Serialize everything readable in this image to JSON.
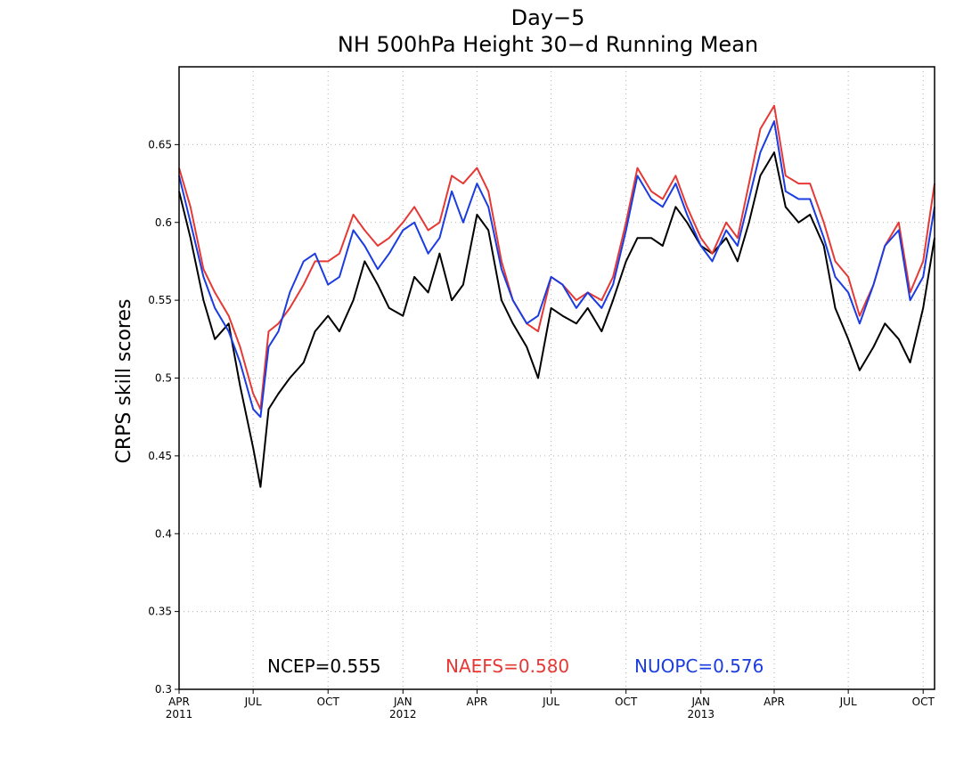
{
  "chart_data": {
    "type": "line",
    "title": "Day−5",
    "subtitle": "NH 500hPa Height 30−d Running Mean",
    "ylabel": "CRPS skill scores",
    "xlabel": "",
    "ylim": [
      0.3,
      0.7
    ],
    "xlim": [
      "2011-04-01",
      "2013-10-15"
    ],
    "grid": true,
    "legend_position": "bottom-center",
    "y_ticks": [
      "0.3",
      "0.35",
      "0.4",
      "0.45",
      "0.5",
      "0.55",
      "0.6",
      "0.65"
    ],
    "x_ticks": [
      {
        "date": "2011-04-01",
        "label": "APR",
        "year": "2011"
      },
      {
        "date": "2011-07-01",
        "label": "JUL",
        "year": ""
      },
      {
        "date": "2011-10-01",
        "label": "OCT",
        "year": ""
      },
      {
        "date": "2012-01-01",
        "label": "JAN",
        "year": "2012"
      },
      {
        "date": "2012-04-01",
        "label": "APR",
        "year": ""
      },
      {
        "date": "2012-07-01",
        "label": "JUL",
        "year": ""
      },
      {
        "date": "2012-10-01",
        "label": "OCT",
        "year": ""
      },
      {
        "date": "2013-01-01",
        "label": "JAN",
        "year": "2013"
      },
      {
        "date": "2013-04-01",
        "label": "APR",
        "year": ""
      },
      {
        "date": "2013-07-01",
        "label": "JUL",
        "year": ""
      },
      {
        "date": "2013-10-01",
        "label": "OCT",
        "year": ""
      }
    ],
    "series": [
      {
        "name": "NCEP",
        "legend": "NCEP=0.555",
        "color": "#000000",
        "x": [
          "2011-04-01",
          "2011-04-15",
          "2011-05-01",
          "2011-05-15",
          "2011-06-01",
          "2011-06-15",
          "2011-07-01",
          "2011-07-10",
          "2011-07-20",
          "2011-08-01",
          "2011-08-15",
          "2011-09-01",
          "2011-09-15",
          "2011-10-01",
          "2011-10-15",
          "2011-11-01",
          "2011-11-15",
          "2011-12-01",
          "2011-12-15",
          "2012-01-01",
          "2012-01-15",
          "2012-02-01",
          "2012-02-15",
          "2012-03-01",
          "2012-03-15",
          "2012-04-01",
          "2012-04-15",
          "2012-05-01",
          "2012-05-15",
          "2012-06-01",
          "2012-06-15",
          "2012-07-01",
          "2012-07-15",
          "2012-08-01",
          "2012-08-15",
          "2012-09-01",
          "2012-09-15",
          "2012-10-01",
          "2012-10-15",
          "2012-11-01",
          "2012-11-15",
          "2012-12-01",
          "2012-12-15",
          "2013-01-01",
          "2013-01-15",
          "2013-02-01",
          "2013-02-15",
          "2013-03-01",
          "2013-03-15",
          "2013-04-01",
          "2013-04-15",
          "2013-05-01",
          "2013-05-15",
          "2013-06-01",
          "2013-06-15",
          "2013-07-01",
          "2013-07-15",
          "2013-08-01",
          "2013-08-15",
          "2013-09-01",
          "2013-09-15",
          "2013-10-01",
          "2013-10-15"
        ],
        "y": [
          0.62,
          0.59,
          0.55,
          0.525,
          0.535,
          0.495,
          0.455,
          0.43,
          0.48,
          0.49,
          0.5,
          0.51,
          0.53,
          0.54,
          0.53,
          0.55,
          0.575,
          0.56,
          0.545,
          0.54,
          0.565,
          0.555,
          0.58,
          0.55,
          0.56,
          0.605,
          0.595,
          0.55,
          0.535,
          0.52,
          0.5,
          0.545,
          0.54,
          0.535,
          0.545,
          0.53,
          0.55,
          0.575,
          0.59,
          0.59,
          0.585,
          0.61,
          0.6,
          0.585,
          0.58,
          0.59,
          0.575,
          0.6,
          0.63,
          0.645,
          0.61,
          0.6,
          0.605,
          0.585,
          0.545,
          0.525,
          0.505,
          0.52,
          0.535,
          0.525,
          0.51,
          0.545,
          0.59
        ]
      },
      {
        "name": "NAEFS",
        "legend": "NAEFS=0.580",
        "color": "#e53935",
        "x": [
          "2011-04-01",
          "2011-04-15",
          "2011-05-01",
          "2011-05-15",
          "2011-06-01",
          "2011-06-15",
          "2011-07-01",
          "2011-07-10",
          "2011-07-20",
          "2011-08-01",
          "2011-08-15",
          "2011-09-01",
          "2011-09-15",
          "2011-10-01",
          "2011-10-15",
          "2011-11-01",
          "2011-11-15",
          "2011-12-01",
          "2011-12-15",
          "2012-01-01",
          "2012-01-15",
          "2012-02-01",
          "2012-02-15",
          "2012-03-01",
          "2012-03-15",
          "2012-04-01",
          "2012-04-15",
          "2012-05-01",
          "2012-05-15",
          "2012-06-01",
          "2012-06-15",
          "2012-07-01",
          "2012-07-15",
          "2012-08-01",
          "2012-08-15",
          "2012-09-01",
          "2012-09-15",
          "2012-10-01",
          "2012-10-15",
          "2012-11-01",
          "2012-11-15",
          "2012-12-01",
          "2012-12-15",
          "2013-01-01",
          "2013-01-15",
          "2013-02-01",
          "2013-02-15",
          "2013-03-01",
          "2013-03-15",
          "2013-04-01",
          "2013-04-15",
          "2013-05-01",
          "2013-05-15",
          "2013-06-01",
          "2013-06-15",
          "2013-07-01",
          "2013-07-15",
          "2013-08-01",
          "2013-08-15",
          "2013-09-01",
          "2013-09-15",
          "2013-10-01",
          "2013-10-15"
        ],
        "y": [
          0.635,
          0.61,
          0.57,
          0.555,
          0.54,
          0.52,
          0.49,
          0.48,
          0.53,
          0.535,
          0.545,
          0.56,
          0.575,
          0.575,
          0.58,
          0.605,
          0.595,
          0.585,
          0.59,
          0.6,
          0.61,
          0.595,
          0.6,
          0.63,
          0.625,
          0.635,
          0.62,
          0.575,
          0.55,
          0.535,
          0.53,
          0.565,
          0.56,
          0.55,
          0.555,
          0.55,
          0.565,
          0.6,
          0.635,
          0.62,
          0.615,
          0.63,
          0.61,
          0.59,
          0.58,
          0.6,
          0.59,
          0.625,
          0.66,
          0.675,
          0.63,
          0.625,
          0.625,
          0.6,
          0.575,
          0.565,
          0.54,
          0.56,
          0.585,
          0.6,
          0.555,
          0.575,
          0.625
        ]
      },
      {
        "name": "NUOPC",
        "legend": "NUOPC=0.576",
        "color": "#1a3ce0",
        "x": [
          "2011-04-01",
          "2011-04-15",
          "2011-05-01",
          "2011-05-15",
          "2011-06-01",
          "2011-06-15",
          "2011-07-01",
          "2011-07-10",
          "2011-07-20",
          "2011-08-01",
          "2011-08-15",
          "2011-09-01",
          "2011-09-15",
          "2011-10-01",
          "2011-10-15",
          "2011-11-01",
          "2011-11-15",
          "2011-12-01",
          "2011-12-15",
          "2012-01-01",
          "2012-01-15",
          "2012-02-01",
          "2012-02-15",
          "2012-03-01",
          "2012-03-15",
          "2012-04-01",
          "2012-04-15",
          "2012-05-01",
          "2012-05-15",
          "2012-06-01",
          "2012-06-15",
          "2012-07-01",
          "2012-07-15",
          "2012-08-01",
          "2012-08-15",
          "2012-09-01",
          "2012-09-15",
          "2012-10-01",
          "2012-10-15",
          "2012-11-01",
          "2012-11-15",
          "2012-12-01",
          "2012-12-15",
          "2013-01-01",
          "2013-01-15",
          "2013-02-01",
          "2013-02-15",
          "2013-03-01",
          "2013-03-15",
          "2013-04-01",
          "2013-04-15",
          "2013-05-01",
          "2013-05-15",
          "2013-06-01",
          "2013-06-15",
          "2013-07-01",
          "2013-07-15",
          "2013-08-01",
          "2013-08-15",
          "2013-09-01",
          "2013-09-15",
          "2013-10-01",
          "2013-10-15"
        ],
        "y": [
          0.63,
          0.6,
          0.565,
          0.545,
          0.53,
          0.51,
          0.48,
          0.475,
          0.52,
          0.53,
          0.555,
          0.575,
          0.58,
          0.56,
          0.565,
          0.595,
          0.585,
          0.57,
          0.58,
          0.595,
          0.6,
          0.58,
          0.59,
          0.62,
          0.6,
          0.625,
          0.61,
          0.57,
          0.55,
          0.535,
          0.54,
          0.565,
          0.56,
          0.545,
          0.555,
          0.545,
          0.56,
          0.595,
          0.63,
          0.615,
          0.61,
          0.625,
          0.605,
          0.585,
          0.575,
          0.595,
          0.585,
          0.615,
          0.645,
          0.665,
          0.62,
          0.615,
          0.615,
          0.59,
          0.565,
          0.555,
          0.535,
          0.56,
          0.585,
          0.595,
          0.55,
          0.565,
          0.61
        ]
      }
    ]
  }
}
